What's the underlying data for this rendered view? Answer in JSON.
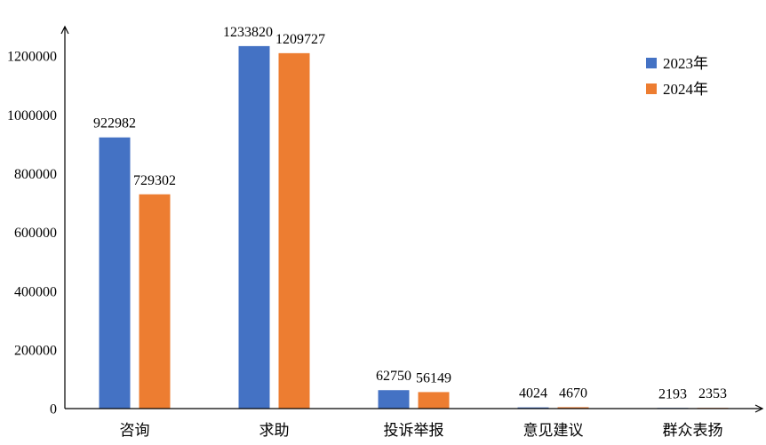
{
  "chart_data": {
    "type": "bar",
    "categories": [
      "咨询",
      "求助",
      "投诉举报",
      "意见建议",
      "群众表扬"
    ],
    "series": [
      {
        "name": "2023年",
        "color": "#4472C4",
        "values": [
          922982,
          1233820,
          62750,
          4024,
          2193
        ]
      },
      {
        "name": "2024年",
        "color": "#ED7D31",
        "values": [
          729302,
          1209727,
          56149,
          4670,
          2353
        ]
      }
    ],
    "ylim": [
      0,
      1300000
    ],
    "yticks": [
      0,
      200000,
      400000,
      600000,
      800000,
      1000000,
      1200000
    ],
    "grid": false,
    "legend": "top-right"
  }
}
